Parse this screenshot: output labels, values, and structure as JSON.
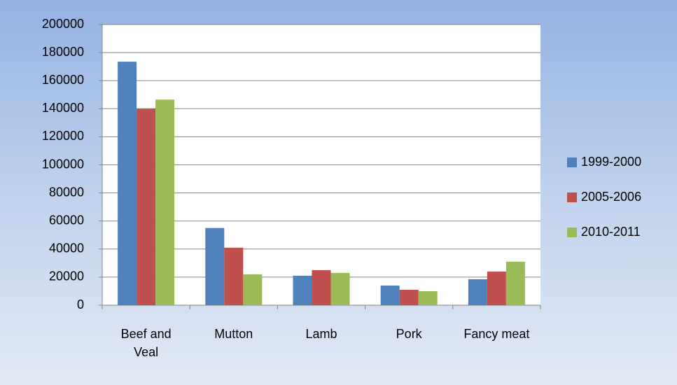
{
  "chart_data": {
    "type": "bar",
    "categories": [
      "Beef and Veal",
      "Mutton",
      "Lamb",
      "Pork",
      "Fancy meat"
    ],
    "series": [
      {
        "name": "1999-2000",
        "color": "#4f81bd",
        "values": [
          173500,
          55000,
          21000,
          14000,
          18500
        ]
      },
      {
        "name": "2005-2006",
        "color": "#c0504d",
        "values": [
          140000,
          41000,
          25000,
          11000,
          24000
        ]
      },
      {
        "name": "2010-2011",
        "color": "#9bbb59",
        "values": [
          146500,
          22000,
          23000,
          10000,
          31000
        ]
      }
    ],
    "ylim": [
      0,
      200000
    ],
    "yticks": [
      0,
      20000,
      40000,
      60000,
      80000,
      100000,
      120000,
      140000,
      160000,
      180000,
      200000
    ],
    "grid": true,
    "legend": "right"
  }
}
